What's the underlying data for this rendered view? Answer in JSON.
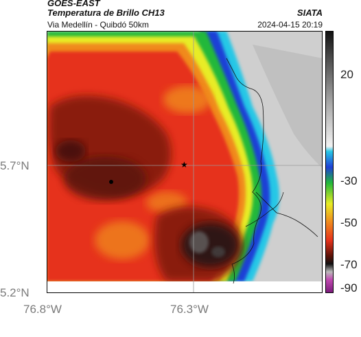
{
  "header": {
    "satellite": "GOES-EAST",
    "product": "Temperatura de Brillo CH13",
    "route": "Via Medellín - Quibdó 50km",
    "org": "SIATA",
    "datetime": "2024-04-15 20:19"
  },
  "axes": {
    "lat_labels": [
      "5.7°N",
      "5.2°N"
    ],
    "lon_labels": [
      "76.8°W",
      "76.3°W"
    ]
  },
  "colorbar": {
    "labels": [
      "20",
      "-30",
      "-50",
      "-70",
      "-90"
    ]
  },
  "colors": {
    "gray": "#cfcfcf",
    "cyan": "#27c7e6",
    "blue": "#1f3fd6",
    "green": "#22b83a",
    "yellow": "#e8ec25",
    "orange": "#f08a1e",
    "red": "#e6321b",
    "darkred": "#8a1a0e",
    "black": "#2a1414",
    "frame": "#000000",
    "grid": "#9a9a9a"
  }
}
